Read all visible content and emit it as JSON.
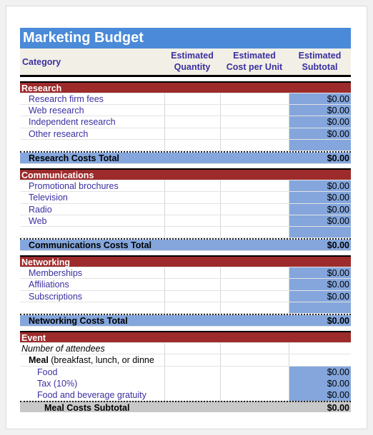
{
  "title": "Marketing Budget",
  "header": {
    "category": "Category",
    "quantity_l1": "Estimated",
    "quantity_l2": "Quantity",
    "cost_l1": "Estimated",
    "cost_l2": "Cost per Unit",
    "subtotal_l1": "Estimated",
    "subtotal_l2": "Subtotal"
  },
  "research": {
    "title": "Research",
    "items": [
      {
        "label": "Research firm fees",
        "value": "$0.00"
      },
      {
        "label": "Web research",
        "value": "$0.00"
      },
      {
        "label": "Independent research",
        "value": "$0.00"
      },
      {
        "label": "Other research",
        "value": "$0.00"
      }
    ],
    "total_label": "Research Costs Total",
    "total_value": "$0.00"
  },
  "communications": {
    "title": "Communications",
    "items": [
      {
        "label": "Promotional brochures",
        "value": "$0.00"
      },
      {
        "label": "Television",
        "value": "$0.00"
      },
      {
        "label": "Radio",
        "value": "$0.00"
      },
      {
        "label": "Web",
        "value": "$0.00"
      }
    ],
    "total_label": "Communications Costs Total",
    "total_value": "$0.00"
  },
  "networking": {
    "title": "Networking",
    "items": [
      {
        "label": "Memberships",
        "value": "$0.00"
      },
      {
        "label": "Affiliations",
        "value": "$0.00"
      },
      {
        "label": "Subscriptions",
        "value": "$0.00"
      }
    ],
    "total_label": "Networking Costs Total",
    "total_value": "$0.00"
  },
  "event": {
    "title": "Event",
    "attendees_label": "Number of attendees",
    "meal_bold": "Meal",
    "meal_rest": " (breakfast, lunch, or dinne",
    "meal_items": [
      {
        "label": "Food",
        "value": "$0.00"
      },
      {
        "label": "Tax (10%)",
        "value": "$0.00"
      },
      {
        "label": "Food and beverage gratuity",
        "value": "$0.00"
      }
    ],
    "meal_subtotal_label": "Meal Costs Subtotal",
    "meal_subtotal_value": "$0.00"
  }
}
